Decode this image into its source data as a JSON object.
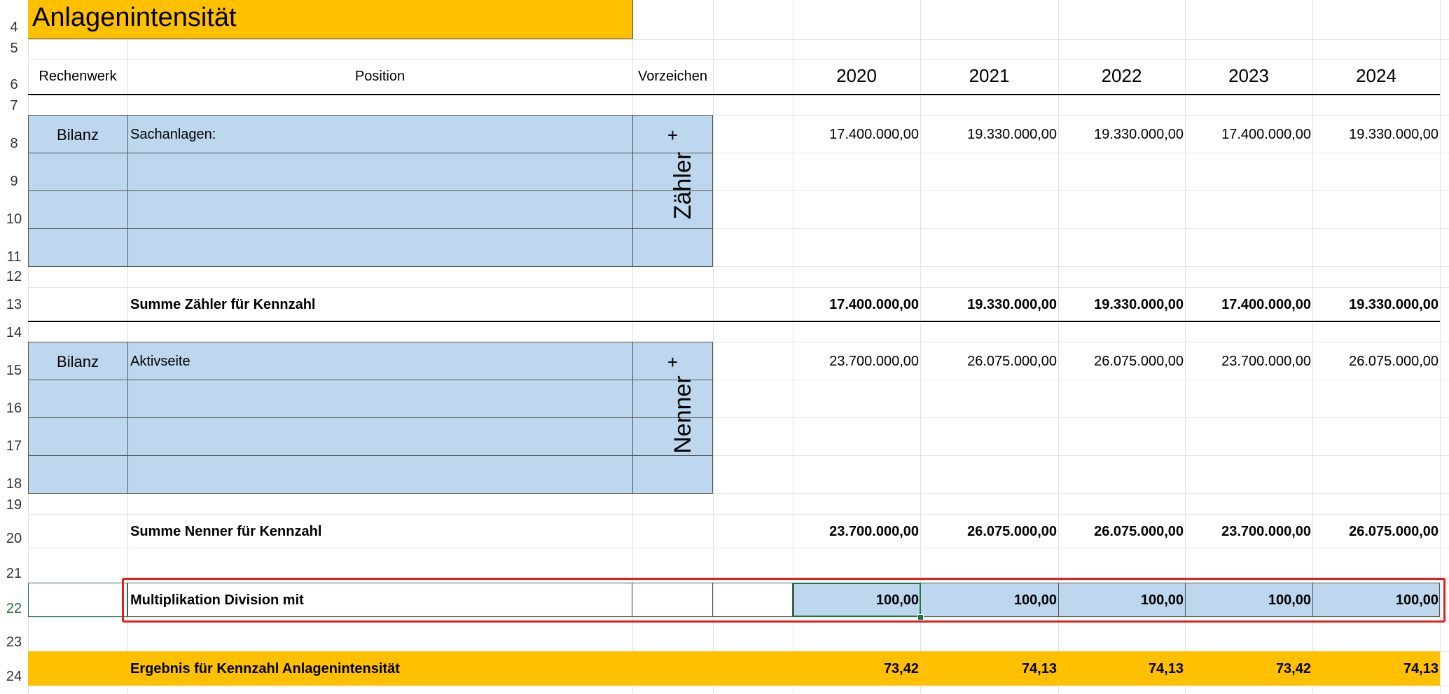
{
  "title": "Anlagenintensität",
  "row_numbers": [
    "4",
    "5",
    "6",
    "7",
    "8",
    "9",
    "10",
    "11",
    "12",
    "13",
    "14",
    "15",
    "16",
    "17",
    "18",
    "19",
    "20",
    "21",
    "22",
    "23",
    "24"
  ],
  "headers": {
    "rechenwerk": "Rechenwerk",
    "position": "Position",
    "vorzeichen": "Vorzeichen",
    "years": [
      "2020",
      "2021",
      "2022",
      "2023",
      "2024"
    ]
  },
  "numerator": {
    "group_label": "Zähler",
    "rechenwerk": "Bilanz",
    "position": "Sachanlagen:",
    "sign": "+",
    "values": [
      "17.400.000,00",
      "19.330.000,00",
      "19.330.000,00",
      "17.400.000,00",
      "19.330.000,00"
    ],
    "sum_label": "Summe Zähler für Kennzahl",
    "sum_values": [
      "17.400.000,00",
      "19.330.000,00",
      "19.330.000,00",
      "17.400.000,00",
      "19.330.000,00"
    ]
  },
  "denominator": {
    "group_label": "Nenner",
    "rechenwerk": "Bilanz",
    "position": "Aktivseite",
    "sign": "+",
    "values": [
      "23.700.000,00",
      "26.075.000,00",
      "26.075.000,00",
      "23.700.000,00",
      "26.075.000,00"
    ],
    "sum_label": "Summe Nenner für Kennzahl",
    "sum_values": [
      "23.700.000,00",
      "26.075.000,00",
      "26.075.000,00",
      "23.700.000,00",
      "26.075.000,00"
    ]
  },
  "multiplier": {
    "label": "Multiplikation Division mit",
    "values": [
      "100,00",
      "100,00",
      "100,00",
      "100,00",
      "100,00"
    ]
  },
  "result": {
    "label": "Ergebnis für Kennzahl Anlagenintensität",
    "values": [
      "73,42",
      "74,13",
      "74,13",
      "73,42",
      "74,13"
    ]
  },
  "colors": {
    "accent_orange": "#ffc000",
    "input_blue": "#bdd7ee",
    "highlight_red": "#e0201c",
    "selection_green": "#217346"
  }
}
